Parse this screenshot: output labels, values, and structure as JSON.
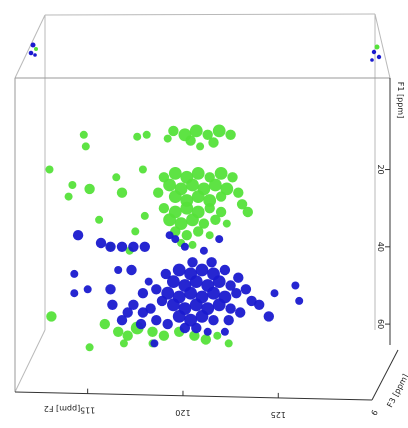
{
  "chart_data": {
    "type": "scatter",
    "title": "",
    "grid": false,
    "legend": "none",
    "colors": {
      "series_a": "#55e23a",
      "series_b": "#1a1acf",
      "box": "#b9b9b9",
      "axis": "#333333"
    },
    "x_axis": {
      "label": "[ppm] F2",
      "ticks": [
        "115",
        "120",
        "125"
      ],
      "range": [
        112.5,
        128.5
      ]
    },
    "y_axis": {
      "label": "F1 [ppm]",
      "ticks": [
        "20",
        "40",
        "60"
      ],
      "range": [
        2,
        68
      ]
    },
    "depth_axis": {
      "label": "F3 [ppm]",
      "ticks": [
        "6"
      ]
    },
    "series": [
      {
        "key": "green",
        "points": [
          {
            "x": 119.5,
            "y": 10,
            "s": 3
          },
          {
            "x": 120.1,
            "y": 11,
            "s": 4
          },
          {
            "x": 120.7,
            "y": 10,
            "s": 4
          },
          {
            "x": 121.3,
            "y": 11,
            "s": 3
          },
          {
            "x": 121.9,
            "y": 10,
            "s": 4
          },
          {
            "x": 122.5,
            "y": 11,
            "s": 3
          },
          {
            "x": 120.4,
            "y": 12.5,
            "s": 3
          },
          {
            "x": 119.2,
            "y": 12,
            "s": 2
          },
          {
            "x": 118.1,
            "y": 11,
            "s": 2
          },
          {
            "x": 117.6,
            "y": 11.5,
            "s": 2
          },
          {
            "x": 121.6,
            "y": 13,
            "s": 3
          },
          {
            "x": 120.9,
            "y": 14,
            "s": 2
          },
          {
            "x": 114.8,
            "y": 11,
            "s": 2
          },
          {
            "x": 114.9,
            "y": 14,
            "s": 2
          },
          {
            "x": 119.0,
            "y": 22,
            "s": 3
          },
          {
            "x": 119.6,
            "y": 21,
            "s": 4
          },
          {
            "x": 120.2,
            "y": 22,
            "s": 4
          },
          {
            "x": 120.8,
            "y": 21,
            "s": 4
          },
          {
            "x": 121.4,
            "y": 22,
            "s": 3
          },
          {
            "x": 122.0,
            "y": 21,
            "s": 4
          },
          {
            "x": 122.6,
            "y": 22,
            "s": 3
          },
          {
            "x": 119.3,
            "y": 24,
            "s": 4
          },
          {
            "x": 119.9,
            "y": 25,
            "s": 4
          },
          {
            "x": 120.5,
            "y": 24,
            "s": 4
          },
          {
            "x": 121.1,
            "y": 25,
            "s": 4
          },
          {
            "x": 121.7,
            "y": 24,
            "s": 4
          },
          {
            "x": 122.3,
            "y": 25,
            "s": 4
          },
          {
            "x": 118.7,
            "y": 26,
            "s": 3
          },
          {
            "x": 119.6,
            "y": 27,
            "s": 4
          },
          {
            "x": 120.2,
            "y": 28,
            "s": 4
          },
          {
            "x": 120.8,
            "y": 27,
            "s": 4
          },
          {
            "x": 121.4,
            "y": 28,
            "s": 4
          },
          {
            "x": 122.0,
            "y": 27,
            "s": 3
          },
          {
            "x": 122.9,
            "y": 26,
            "s": 3
          },
          {
            "x": 119.0,
            "y": 30,
            "s": 3
          },
          {
            "x": 119.6,
            "y": 31,
            "s": 4
          },
          {
            "x": 120.2,
            "y": 30,
            "s": 4
          },
          {
            "x": 120.8,
            "y": 31,
            "s": 4
          },
          {
            "x": 121.4,
            "y": 30,
            "s": 3
          },
          {
            "x": 122.0,
            "y": 31,
            "s": 3
          },
          {
            "x": 123.1,
            "y": 29,
            "s": 3
          },
          {
            "x": 123.4,
            "y": 31,
            "s": 3
          },
          {
            "x": 119.3,
            "y": 33,
            "s": 4
          },
          {
            "x": 119.9,
            "y": 34,
            "s": 4
          },
          {
            "x": 120.5,
            "y": 33,
            "s": 4
          },
          {
            "x": 121.1,
            "y": 34,
            "s": 3
          },
          {
            "x": 121.7,
            "y": 33,
            "s": 3
          },
          {
            "x": 122.3,
            "y": 34,
            "s": 2
          },
          {
            "x": 119.6,
            "y": 36,
            "s": 3
          },
          {
            "x": 120.2,
            "y": 37,
            "s": 3
          },
          {
            "x": 120.8,
            "y": 36,
            "s": 3
          },
          {
            "x": 121.4,
            "y": 37,
            "s": 2
          },
          {
            "x": 119.9,
            "y": 39,
            "s": 2
          },
          {
            "x": 120.5,
            "y": 39.5,
            "s": 2
          },
          {
            "x": 116.5,
            "y": 22,
            "s": 2
          },
          {
            "x": 116.8,
            "y": 26,
            "s": 3
          },
          {
            "x": 115.1,
            "y": 25,
            "s": 3
          },
          {
            "x": 114.2,
            "y": 24,
            "s": 2
          },
          {
            "x": 117.9,
            "y": 20,
            "s": 2
          },
          {
            "x": 118.0,
            "y": 32,
            "s": 2
          },
          {
            "x": 117.5,
            "y": 36,
            "s": 2
          },
          {
            "x": 115.6,
            "y": 33,
            "s": 2
          },
          {
            "x": 113.0,
            "y": 20,
            "s": 2
          },
          {
            "x": 114.0,
            "y": 27,
            "s": 2
          },
          {
            "x": 116.2,
            "y": 40,
            "s": 2
          },
          {
            "x": 117.2,
            "y": 41,
            "s": 2
          },
          {
            "x": 113.1,
            "y": 58,
            "s": 3
          },
          {
            "x": 115.9,
            "y": 60,
            "s": 3
          },
          {
            "x": 116.6,
            "y": 62,
            "s": 3
          },
          {
            "x": 117.6,
            "y": 61,
            "s": 4
          },
          {
            "x": 117.1,
            "y": 63,
            "s": 3
          },
          {
            "x": 118.4,
            "y": 62,
            "s": 3
          },
          {
            "x": 119.0,
            "y": 63,
            "s": 3
          },
          {
            "x": 119.8,
            "y": 62,
            "s": 3
          },
          {
            "x": 120.6,
            "y": 63,
            "s": 3
          },
          {
            "x": 121.2,
            "y": 64,
            "s": 3
          },
          {
            "x": 121.8,
            "y": 63,
            "s": 2
          },
          {
            "x": 118.4,
            "y": 65,
            "s": 2
          },
          {
            "x": 116.9,
            "y": 65,
            "s": 2
          },
          {
            "x": 115.1,
            "y": 66,
            "s": 2
          },
          {
            "x": 122.4,
            "y": 65,
            "s": 2
          }
        ]
      },
      {
        "key": "blue",
        "points": [
          {
            "x": 119.8,
            "y": 46,
            "s": 4
          },
          {
            "x": 120.4,
            "y": 47,
            "s": 4
          },
          {
            "x": 121.0,
            "y": 46,
            "s": 4
          },
          {
            "x": 121.6,
            "y": 47,
            "s": 4
          },
          {
            "x": 122.2,
            "y": 46,
            "s": 3
          },
          {
            "x": 119.5,
            "y": 49,
            "s": 4
          },
          {
            "x": 120.1,
            "y": 50,
            "s": 4
          },
          {
            "x": 120.7,
            "y": 49,
            "s": 4
          },
          {
            "x": 121.3,
            "y": 50,
            "s": 4
          },
          {
            "x": 121.9,
            "y": 49,
            "s": 4
          },
          {
            "x": 122.5,
            "y": 50,
            "s": 3
          },
          {
            "x": 119.2,
            "y": 52,
            "s": 4
          },
          {
            "x": 119.8,
            "y": 53,
            "s": 4
          },
          {
            "x": 120.4,
            "y": 52,
            "s": 4
          },
          {
            "x": 121.0,
            "y": 53,
            "s": 4
          },
          {
            "x": 121.6,
            "y": 52,
            "s": 4
          },
          {
            "x": 122.2,
            "y": 53,
            "s": 4
          },
          {
            "x": 122.8,
            "y": 52,
            "s": 3
          },
          {
            "x": 119.5,
            "y": 55,
            "s": 4
          },
          {
            "x": 120.1,
            "y": 56,
            "s": 4
          },
          {
            "x": 120.7,
            "y": 55,
            "s": 4
          },
          {
            "x": 121.3,
            "y": 56,
            "s": 4
          },
          {
            "x": 121.9,
            "y": 55,
            "s": 4
          },
          {
            "x": 122.5,
            "y": 56,
            "s": 3
          },
          {
            "x": 118.9,
            "y": 54,
            "s": 3
          },
          {
            "x": 118.6,
            "y": 51,
            "s": 3
          },
          {
            "x": 118.3,
            "y": 56,
            "s": 3
          },
          {
            "x": 119.8,
            "y": 58,
            "s": 4
          },
          {
            "x": 120.4,
            "y": 59,
            "s": 4
          },
          {
            "x": 121.0,
            "y": 58,
            "s": 4
          },
          {
            "x": 121.6,
            "y": 59,
            "s": 3
          },
          {
            "x": 120.1,
            "y": 61,
            "s": 3
          },
          {
            "x": 120.7,
            "y": 61,
            "s": 3
          },
          {
            "x": 121.3,
            "y": 62,
            "s": 2
          },
          {
            "x": 119.2,
            "y": 60,
            "s": 3
          },
          {
            "x": 118.6,
            "y": 59,
            "s": 3
          },
          {
            "x": 117.9,
            "y": 57,
            "s": 3
          },
          {
            "x": 117.4,
            "y": 55,
            "s": 3
          },
          {
            "x": 117.9,
            "y": 52,
            "s": 3
          },
          {
            "x": 118.2,
            "y": 49,
            "s": 2
          },
          {
            "x": 119.1,
            "y": 47,
            "s": 3
          },
          {
            "x": 120.5,
            "y": 44,
            "s": 3
          },
          {
            "x": 121.5,
            "y": 44,
            "s": 3
          },
          {
            "x": 122.9,
            "y": 48,
            "s": 3
          },
          {
            "x": 123.3,
            "y": 51,
            "s": 3
          },
          {
            "x": 123.6,
            "y": 54,
            "s": 3
          },
          {
            "x": 123.0,
            "y": 57,
            "s": 3
          },
          {
            "x": 122.4,
            "y": 59,
            "s": 3
          },
          {
            "x": 120.1,
            "y": 40,
            "s": 2
          },
          {
            "x": 121.1,
            "y": 41,
            "s": 2
          },
          {
            "x": 119.6,
            "y": 38,
            "s": 2
          },
          {
            "x": 121.9,
            "y": 38,
            "s": 2
          },
          {
            "x": 119.3,
            "y": 37,
            "s": 2
          },
          {
            "x": 114.5,
            "y": 37,
            "s": 3
          },
          {
            "x": 115.7,
            "y": 39,
            "s": 3
          },
          {
            "x": 116.2,
            "y": 40,
            "s": 3
          },
          {
            "x": 116.8,
            "y": 40,
            "s": 3
          },
          {
            "x": 117.4,
            "y": 40,
            "s": 3
          },
          {
            "x": 118.0,
            "y": 40,
            "s": 3
          },
          {
            "x": 117.3,
            "y": 46,
            "s": 3
          },
          {
            "x": 116.6,
            "y": 46,
            "s": 2
          },
          {
            "x": 116.2,
            "y": 51,
            "s": 3
          },
          {
            "x": 114.3,
            "y": 47,
            "s": 2
          },
          {
            "x": 114.3,
            "y": 52,
            "s": 2
          },
          {
            "x": 115.0,
            "y": 51,
            "s": 2
          },
          {
            "x": 116.3,
            "y": 55,
            "s": 3
          },
          {
            "x": 117.1,
            "y": 57,
            "s": 3
          },
          {
            "x": 116.8,
            "y": 59,
            "s": 3
          },
          {
            "x": 117.8,
            "y": 60,
            "s": 3
          },
          {
            "x": 124.0,
            "y": 55,
            "s": 3
          },
          {
            "x": 124.5,
            "y": 58,
            "s": 3
          },
          {
            "x": 124.8,
            "y": 52,
            "s": 2
          },
          {
            "x": 125.9,
            "y": 50,
            "s": 2
          },
          {
            "x": 126.1,
            "y": 54,
            "s": 2
          },
          {
            "x": 118.5,
            "y": 65,
            "s": 2
          },
          {
            "x": 122.2,
            "y": 62,
            "s": 2
          }
        ]
      }
    ]
  }
}
